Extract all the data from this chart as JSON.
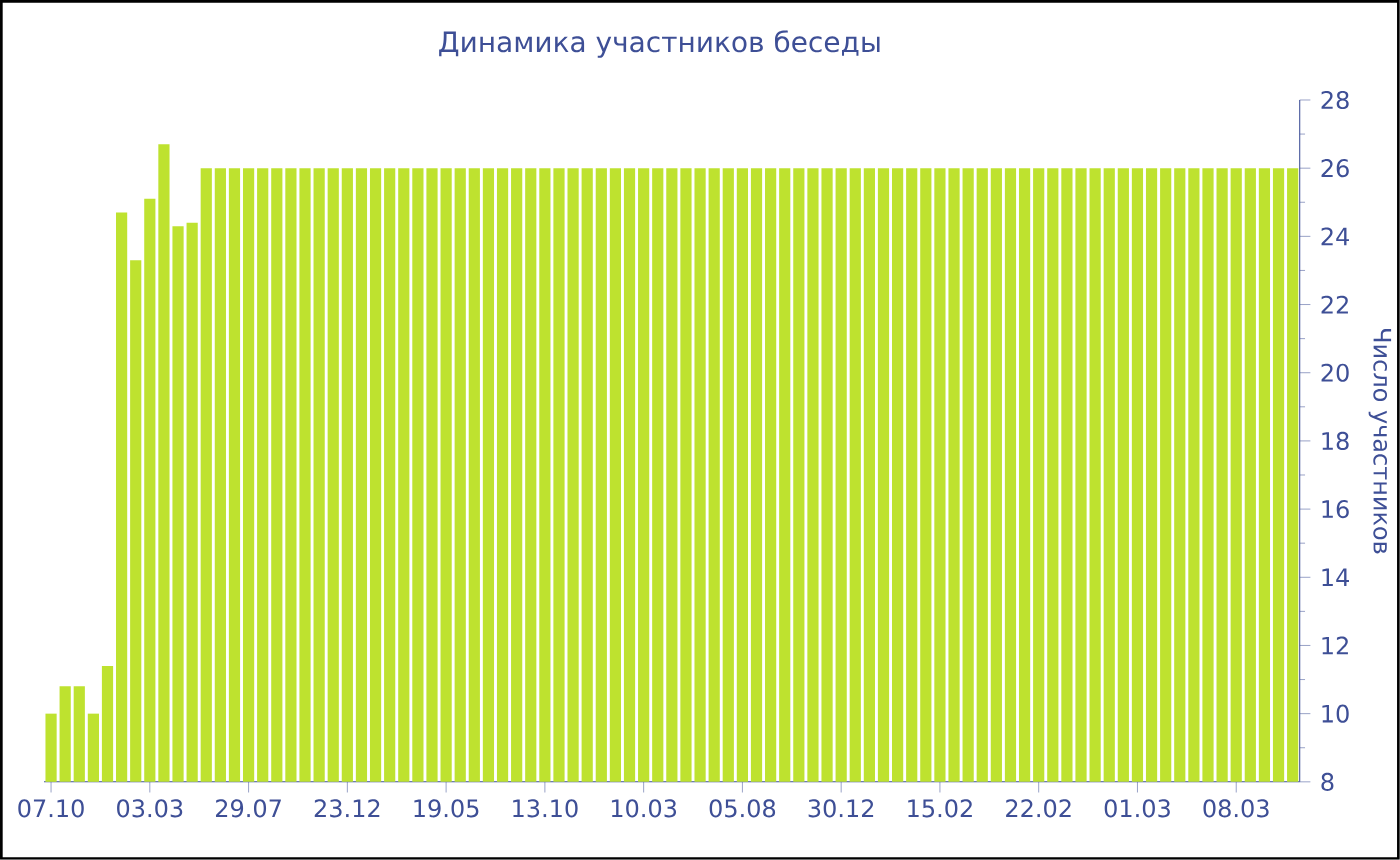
{
  "chart_data": {
    "type": "bar",
    "title": "Динамика участников беседы",
    "ylabel": "Число участников",
    "categories": [
      "07.10",
      null,
      null,
      null,
      null,
      null,
      null,
      "03.03",
      null,
      null,
      null,
      null,
      null,
      null,
      "29.07",
      null,
      null,
      null,
      null,
      null,
      null,
      "23.12",
      null,
      null,
      null,
      null,
      null,
      null,
      "19.05",
      null,
      null,
      null,
      null,
      null,
      null,
      "13.10",
      null,
      null,
      null,
      null,
      null,
      null,
      "10.03",
      null,
      null,
      null,
      null,
      null,
      null,
      "05.08",
      null,
      null,
      null,
      null,
      null,
      null,
      "30.12",
      null,
      null,
      null,
      null,
      null,
      null,
      "15.02",
      null,
      null,
      null,
      null,
      null,
      null,
      "22.02",
      null,
      null,
      null,
      null,
      null,
      null,
      "01.03",
      null,
      null,
      null,
      null,
      null,
      null,
      "08.03",
      null,
      null,
      null,
      null
    ],
    "values": [
      10,
      10.8,
      10.8,
      10,
      11.4,
      24.7,
      23.3,
      25.1,
      26.7,
      24.3,
      24.4,
      26,
      26,
      26,
      26,
      26,
      26,
      26,
      26,
      26,
      26,
      26,
      26,
      26,
      26,
      26,
      26,
      26,
      26,
      26,
      26,
      26,
      26,
      26,
      26,
      26,
      26,
      26,
      26,
      26,
      26,
      26,
      26,
      26,
      26,
      26,
      26,
      26,
      26,
      26,
      26,
      26,
      26,
      26,
      26,
      26,
      26,
      26,
      26,
      26,
      26,
      26,
      26,
      26,
      26,
      26,
      26,
      26,
      26,
      26,
      26,
      26,
      26,
      26,
      26,
      26,
      26,
      26,
      26,
      26,
      26,
      26,
      26,
      26,
      26,
      26,
      26,
      26,
      26
    ],
    "color": "#bee22f",
    "ylim": [
      8,
      28
    ],
    "yticks": [
      8,
      10,
      12,
      14,
      16,
      18,
      20,
      22,
      24,
      26,
      28
    ]
  }
}
